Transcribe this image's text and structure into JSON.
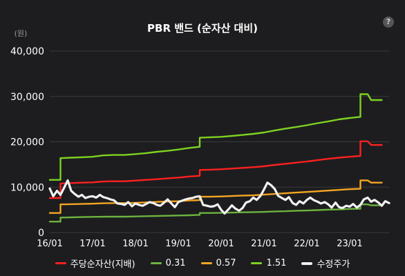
{
  "title": "PBR 밴드 (순자산 대비)",
  "help_glyph": "?",
  "colors": {
    "background": "#1d1d1f",
    "grid": "#3a3a3e",
    "axis_text": "#ffffff",
    "unit_text": "#9a9aa0"
  },
  "chart_data": {
    "type": "line",
    "ylabel": "(원)",
    "xlabel": "",
    "ylim": [
      0,
      40000
    ],
    "yticks": [
      0,
      10000,
      20000,
      30000,
      40000
    ],
    "ytick_labels": [
      "0",
      "10,000",
      "20,000",
      "30,000",
      "40,000"
    ],
    "xlim": [
      2016.0,
      2023.92
    ],
    "xticks": [
      2016.0,
      2017.0,
      2018.0,
      2019.0,
      2020.0,
      2021.0,
      2022.0,
      2023.0
    ],
    "xtick_labels": [
      "16/01",
      "17/01",
      "18/01",
      "19/01",
      "20/01",
      "21/01",
      "22/01",
      "23/01"
    ],
    "grid": "horizontal",
    "legend_position": "bottom",
    "series": [
      {
        "name": "주당순자산(지배)",
        "color": "#ff2020",
        "x": [
          2016.0,
          2016.25,
          2016.25,
          2016.5,
          2016.75,
          2017.0,
          2017.25,
          2017.5,
          2017.75,
          2018.0,
          2018.25,
          2018.5,
          2018.75,
          2019.0,
          2019.25,
          2019.5,
          2019.5,
          2019.75,
          2020.0,
          2020.25,
          2020.5,
          2020.75,
          2021.0,
          2021.25,
          2021.5,
          2021.75,
          2022.0,
          2022.25,
          2022.5,
          2022.75,
          2023.0,
          2023.25,
          2023.25,
          2023.42,
          2023.5,
          2023.75
        ],
        "values": [
          7600,
          7600,
          10800,
          10900,
          11000,
          11050,
          11250,
          11300,
          11300,
          11450,
          11600,
          11750,
          11950,
          12100,
          12350,
          12500,
          13800,
          13850,
          13950,
          14100,
          14250,
          14400,
          14600,
          14900,
          15150,
          15400,
          15650,
          15950,
          16250,
          16500,
          16700,
          16900,
          20100,
          20100,
          19300,
          19300
        ]
      },
      {
        "name": "0.31",
        "color": "#6db33f",
        "x": [
          2016.0,
          2016.25,
          2016.25,
          2016.5,
          2016.75,
          2017.0,
          2017.25,
          2017.5,
          2017.75,
          2018.0,
          2018.25,
          2018.5,
          2018.75,
          2019.0,
          2019.25,
          2019.5,
          2019.5,
          2019.75,
          2020.0,
          2020.25,
          2020.5,
          2020.75,
          2021.0,
          2021.25,
          2021.5,
          2021.75,
          2022.0,
          2022.25,
          2022.5,
          2022.75,
          2023.0,
          2023.25,
          2023.25,
          2023.42,
          2023.5,
          2023.75
        ],
        "values": [
          2400,
          2400,
          3300,
          3350,
          3400,
          3450,
          3480,
          3500,
          3500,
          3550,
          3600,
          3650,
          3700,
          3750,
          3800,
          3900,
          4300,
          4300,
          4350,
          4400,
          4450,
          4500,
          4550,
          4650,
          4700,
          4800,
          4850,
          4950,
          5050,
          5100,
          5200,
          5250,
          6200,
          6200,
          6000,
          6000
        ]
      },
      {
        "name": "0.57",
        "color": "#f5a623",
        "x": [
          2016.0,
          2016.25,
          2016.25,
          2016.5,
          2016.75,
          2017.0,
          2017.25,
          2017.5,
          2017.75,
          2018.0,
          2018.25,
          2018.5,
          2018.75,
          2019.0,
          2019.25,
          2019.5,
          2019.5,
          2019.75,
          2020.0,
          2020.25,
          2020.5,
          2020.75,
          2021.0,
          2021.25,
          2021.5,
          2021.75,
          2022.0,
          2022.25,
          2022.5,
          2022.75,
          2023.0,
          2023.25,
          2023.25,
          2023.42,
          2023.5,
          2023.75
        ],
        "values": [
          4300,
          4300,
          6200,
          6250,
          6300,
          6350,
          6450,
          6500,
          6500,
          6550,
          6650,
          6750,
          6850,
          6900,
          7050,
          7150,
          7900,
          7900,
          7950,
          8050,
          8150,
          8200,
          8350,
          8500,
          8650,
          8800,
          8950,
          9100,
          9250,
          9400,
          9550,
          9650,
          11500,
          11500,
          11000,
          11000
        ]
      },
      {
        "name": "1.51",
        "color": "#7ed321",
        "x": [
          2016.0,
          2016.25,
          2016.25,
          2016.5,
          2016.75,
          2017.0,
          2017.25,
          2017.5,
          2017.75,
          2018.0,
          2018.25,
          2018.5,
          2018.75,
          2019.0,
          2019.25,
          2019.5,
          2019.5,
          2019.75,
          2020.0,
          2020.25,
          2020.5,
          2020.75,
          2021.0,
          2021.25,
          2021.5,
          2021.75,
          2022.0,
          2022.25,
          2022.5,
          2022.75,
          2023.0,
          2023.25,
          2023.25,
          2023.42,
          2023.5,
          2023.75
        ],
        "values": [
          11600,
          11600,
          16400,
          16500,
          16600,
          16700,
          17000,
          17100,
          17100,
          17300,
          17500,
          17800,
          18000,
          18300,
          18650,
          18900,
          20900,
          21000,
          21100,
          21300,
          21500,
          21750,
          22050,
          22500,
          22900,
          23250,
          23650,
          24100,
          24500,
          24950,
          25250,
          25500,
          30500,
          30500,
          29200,
          29200
        ]
      },
      {
        "name": "수정주가",
        "color": "#f2f2f2",
        "x": [
          2016.0,
          2016.08,
          2016.17,
          2016.25,
          2016.33,
          2016.42,
          2016.5,
          2016.58,
          2016.67,
          2016.75,
          2016.83,
          2016.92,
          2017.0,
          2017.08,
          2017.17,
          2017.25,
          2017.33,
          2017.42,
          2017.5,
          2017.58,
          2017.67,
          2017.75,
          2017.83,
          2017.92,
          2018.0,
          2018.08,
          2018.17,
          2018.25,
          2018.33,
          2018.42,
          2018.5,
          2018.58,
          2018.67,
          2018.75,
          2018.83,
          2018.92,
          2019.0,
          2019.08,
          2019.17,
          2019.25,
          2019.33,
          2019.42,
          2019.5,
          2019.58,
          2019.67,
          2019.75,
          2019.83,
          2019.92,
          2020.0,
          2020.08,
          2020.17,
          2020.25,
          2020.33,
          2020.42,
          2020.5,
          2020.58,
          2020.67,
          2020.75,
          2020.83,
          2020.92,
          2021.0,
          2021.08,
          2021.17,
          2021.25,
          2021.33,
          2021.42,
          2021.5,
          2021.58,
          2021.67,
          2021.75,
          2021.83,
          2021.92,
          2022.0,
          2022.08,
          2022.17,
          2022.25,
          2022.33,
          2022.42,
          2022.5,
          2022.58,
          2022.67,
          2022.75,
          2022.83,
          2022.92,
          2023.0,
          2023.08,
          2023.17,
          2023.25,
          2023.33,
          2023.42,
          2023.5,
          2023.58,
          2023.67,
          2023.75,
          2023.83,
          2023.92
        ],
        "values": [
          9700,
          8000,
          9200,
          8300,
          9800,
          11500,
          9200,
          8500,
          7900,
          8300,
          7600,
          7900,
          8000,
          7700,
          8300,
          7800,
          7600,
          7300,
          7100,
          6400,
          6300,
          6100,
          6700,
          5800,
          6400,
          6100,
          5900,
          6300,
          6700,
          6500,
          6100,
          5900,
          6600,
          7300,
          6500,
          5600,
          6700,
          7000,
          7300,
          7500,
          7600,
          7900,
          8000,
          6100,
          5900,
          5700,
          5800,
          6200,
          5000,
          4200,
          5100,
          6000,
          5300,
          4800,
          5400,
          6600,
          6900,
          7700,
          7200,
          8100,
          9500,
          11000,
          10400,
          9600,
          8100,
          7600,
          7200,
          7800,
          6500,
          6100,
          6900,
          6400,
          7200,
          7700,
          7100,
          6800,
          6400,
          6700,
          6200,
          5500,
          6600,
          5600,
          5400,
          5900,
          5700,
          6300,
          5500,
          6100,
          7300,
          7700,
          6800,
          7200,
          6600,
          5900,
          6900,
          6500
        ]
      }
    ]
  }
}
